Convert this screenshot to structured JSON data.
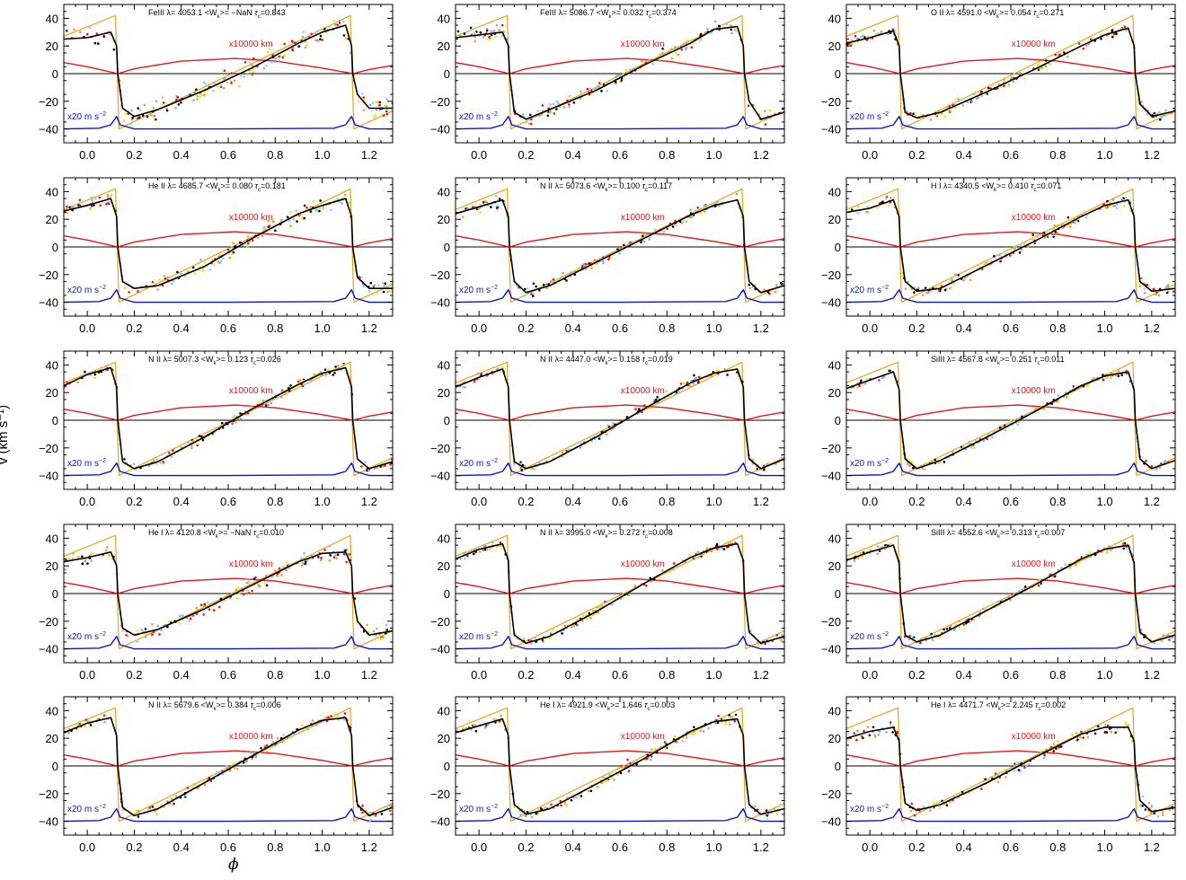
{
  "figure": {
    "ylabel": "v (km s⁻¹)",
    "xlabel": "ϕ"
  },
  "chart_data": {
    "type": "line",
    "grid": false,
    "xlim": [
      -0.1,
      1.3
    ],
    "ylim": [
      -50,
      50
    ],
    "xticks": [
      0.0,
      0.2,
      0.4,
      0.6,
      0.8,
      1.0,
      1.2
    ],
    "xtick_labels": [
      "0.0",
      "0.2",
      "0.4",
      "0.6",
      "0.8",
      "1.0",
      "1.2"
    ],
    "yticks": [
      -40,
      -20,
      0,
      20,
      40
    ],
    "ytick_labels": [
      "−40",
      "−20",
      "0",
      "20",
      "40"
    ],
    "colors": {
      "model_velocity": "#e8a317",
      "radius_curve": "#e8141b",
      "acceleration_curve": "#0a14c8",
      "zero_line": "#000000",
      "smoothed_fit": "#000000",
      "points": [
        "#000000",
        "#e8a317",
        "#f2e20c",
        "#7fd3f0",
        "#9aa6d8",
        "#e8141b"
      ]
    },
    "radius_label": "x10000 km",
    "accel_label": "x20 m s",
    "accel_label_sup": "−2",
    "model_velocity": {
      "x": [
        -0.1,
        0.12,
        0.135,
        1.12,
        1.135,
        1.3
      ],
      "y": [
        27,
        42,
        -40,
        42,
        -40,
        -27
      ]
    },
    "radius_curve": {
      "x": [
        -0.1,
        0.0,
        0.13,
        0.2,
        0.4,
        0.63,
        0.8,
        1.0,
        1.13,
        1.2,
        1.3
      ],
      "y": [
        8,
        5,
        0,
        3.5,
        9,
        11,
        9,
        4,
        0,
        3,
        6
      ]
    },
    "acceleration_curve": {
      "x": [
        -0.1,
        0.05,
        0.1,
        0.125,
        0.14,
        0.2,
        0.6,
        1.05,
        1.1,
        1.125,
        1.14,
        1.2,
        1.3
      ],
      "y": [
        -40,
        -39.5,
        -37,
        -31,
        -37,
        -40,
        -40,
        -39.5,
        -37,
        -31,
        -37,
        -40,
        -40
      ]
    },
    "panels": [
      {
        "ion": "FeIII",
        "wavelength": "4053.1",
        "wk": " −NaN",
        "tau": "0.843",
        "scatter": 3.5,
        "fit": {
          "x": [
            -0.1,
            0.0,
            0.1,
            0.125,
            0.13,
            0.15,
            0.2,
            0.3,
            0.5,
            0.7,
            0.9,
            1.0,
            1.1,
            1.125,
            1.13,
            1.15,
            1.2,
            1.3
          ],
          "y": [
            25,
            26,
            30,
            20,
            0,
            -25,
            -31,
            -26,
            -12,
            4,
            22,
            30,
            35,
            20,
            0,
            -15,
            -25,
            -25
          ]
        }
      },
      {
        "ion": "FeIII",
        "wavelength": "5086.7",
        "wk": " 0.032",
        "tau": "0.374",
        "scatter": 2.5,
        "fit": {
          "x": [
            -0.1,
            0.0,
            0.1,
            0.125,
            0.13,
            0.15,
            0.2,
            0.3,
            0.5,
            0.7,
            0.9,
            1.0,
            1.1,
            1.125,
            1.13,
            1.15,
            1.2,
            1.3
          ],
          "y": [
            26,
            28,
            30,
            20,
            0,
            -28,
            -33,
            -26,
            -12,
            6,
            22,
            32,
            34,
            20,
            0,
            -20,
            -33,
            -28
          ]
        }
      },
      {
        "ion": "O  II",
        "wavelength": "4591.0",
        "wk": " 0.054",
        "tau": "0.271",
        "scatter": 1.8,
        "fit": {
          "x": [
            -0.1,
            0.0,
            0.1,
            0.125,
            0.13,
            0.15,
            0.2,
            0.3,
            0.5,
            0.7,
            0.9,
            1.0,
            1.1,
            1.125,
            1.13,
            1.15,
            1.2,
            1.3
          ],
          "y": [
            22,
            26,
            31,
            20,
            0,
            -28,
            -32,
            -28,
            -13,
            3,
            20,
            28,
            33,
            20,
            0,
            -22,
            -31,
            -27
          ]
        }
      },
      {
        "ion": "He II",
        "wavelength": "4685.7",
        "wk": " 0.080",
        "tau": "0.181",
        "scatter": 2.5,
        "fit": {
          "x": [
            -0.1,
            0.0,
            0.1,
            0.125,
            0.13,
            0.15,
            0.2,
            0.3,
            0.5,
            0.7,
            0.9,
            1.0,
            1.1,
            1.125,
            1.13,
            1.15,
            1.2,
            1.3
          ],
          "y": [
            26,
            30,
            35,
            22,
            0,
            -25,
            -30,
            -28,
            -14,
            6,
            24,
            30,
            35,
            22,
            0,
            -22,
            -30,
            -30
          ]
        }
      },
      {
        "ion": "N  II",
        "wavelength": "5073.6",
        "wk": " 0.100",
        "tau": "0.117",
        "scatter": 1.8,
        "fit": {
          "x": [
            -0.1,
            0.0,
            0.1,
            0.125,
            0.13,
            0.15,
            0.2,
            0.3,
            0.5,
            0.7,
            0.9,
            1.0,
            1.1,
            1.125,
            1.13,
            1.15,
            1.2,
            1.3
          ],
          "y": [
            24,
            29,
            34,
            22,
            0,
            -25,
            -33,
            -28,
            -11,
            6,
            23,
            30,
            34,
            22,
            0,
            -25,
            -33,
            -28
          ]
        }
      },
      {
        "ion": "H  I",
        "wavelength": "4340.5",
        "wk": " 0.410",
        "tau": "0.071",
        "scatter": 2.0,
        "fit": {
          "x": [
            -0.1,
            0.0,
            0.1,
            0.125,
            0.13,
            0.15,
            0.2,
            0.3,
            0.5,
            0.7,
            0.9,
            1.0,
            1.1,
            1.125,
            1.13,
            1.15,
            1.2,
            1.3
          ],
          "y": [
            25,
            28,
            34,
            22,
            0,
            -25,
            -32,
            -30,
            -13,
            4,
            22,
            30,
            34,
            22,
            0,
            -25,
            -32,
            -30
          ]
        }
      },
      {
        "ion": "N  II",
        "wavelength": "5007.3",
        "wk": " 0.123",
        "tau": "0.026",
        "scatter": 1.5,
        "fit": {
          "x": [
            -0.1,
            0.0,
            0.1,
            0.125,
            0.13,
            0.15,
            0.2,
            0.3,
            0.5,
            0.7,
            0.9,
            1.0,
            1.1,
            1.125,
            1.13,
            1.15,
            1.2,
            1.3
          ],
          "y": [
            25,
            33,
            38,
            24,
            0,
            -30,
            -35,
            -30,
            -12,
            8,
            26,
            34,
            38,
            24,
            0,
            -28,
            -35,
            -30
          ]
        }
      },
      {
        "ion": "N  II",
        "wavelength": "4447.0",
        "wk": " 0.158",
        "tau": "0.019",
        "scatter": 1.5,
        "fit": {
          "x": [
            -0.1,
            0.0,
            0.1,
            0.125,
            0.13,
            0.15,
            0.2,
            0.3,
            0.5,
            0.7,
            0.9,
            1.0,
            1.1,
            1.125,
            1.13,
            1.15,
            1.2,
            1.3
          ],
          "y": [
            24,
            31,
            37,
            24,
            0,
            -30,
            -35,
            -30,
            -12,
            8,
            27,
            34,
            37,
            24,
            0,
            -28,
            -35,
            -28
          ]
        }
      },
      {
        "ion": "SiIII",
        "wavelength": "4567.8",
        "wk": " 0.251",
        "tau": "0.011",
        "scatter": 1.3,
        "fit": {
          "x": [
            -0.1,
            0.0,
            0.1,
            0.125,
            0.13,
            0.15,
            0.2,
            0.3,
            0.5,
            0.7,
            0.9,
            1.0,
            1.1,
            1.125,
            1.13,
            1.15,
            1.2,
            1.3
          ],
          "y": [
            23,
            29,
            35,
            22,
            0,
            -28,
            -35,
            -29,
            -12,
            6,
            25,
            32,
            35,
            22,
            0,
            -28,
            -35,
            -29
          ]
        }
      },
      {
        "ion": "He  I",
        "wavelength": "4120.8",
        "wk": " −NaN",
        "tau": "0.010",
        "scatter": 2.5,
        "fit": {
          "x": [
            -0.1,
            0.0,
            0.1,
            0.125,
            0.13,
            0.15,
            0.2,
            0.3,
            0.5,
            0.7,
            0.9,
            1.0,
            1.1,
            1.125,
            1.13,
            1.15,
            1.2,
            1.3
          ],
          "y": [
            23,
            26,
            30,
            20,
            0,
            -25,
            -30,
            -26,
            -11,
            6,
            23,
            29,
            30,
            20,
            0,
            -20,
            -30,
            -27
          ]
        }
      },
      {
        "ion": "N  II",
        "wavelength": "3995.0",
        "wk": " 0.272",
        "tau": "0.008",
        "scatter": 1.3,
        "fit": {
          "x": [
            -0.1,
            0.0,
            0.1,
            0.125,
            0.13,
            0.15,
            0.2,
            0.3,
            0.5,
            0.7,
            0.9,
            1.0,
            1.1,
            1.125,
            1.13,
            1.15,
            1.2,
            1.3
          ],
          "y": [
            25,
            32,
            36,
            24,
            0,
            -30,
            -36,
            -31,
            -13,
            7,
            26,
            33,
            36,
            24,
            0,
            -28,
            -36,
            -31
          ]
        }
      },
      {
        "ion": "SiIII",
        "wavelength": "4552.6",
        "wk": " 0.313",
        "tau": "0.007",
        "scatter": 1.3,
        "fit": {
          "x": [
            -0.1,
            0.0,
            0.1,
            0.125,
            0.13,
            0.15,
            0.2,
            0.3,
            0.5,
            0.7,
            0.9,
            1.0,
            1.1,
            1.125,
            1.13,
            1.15,
            1.2,
            1.3
          ],
          "y": [
            24,
            30,
            35,
            22,
            0,
            -30,
            -35,
            -30,
            -12,
            6,
            25,
            32,
            35,
            22,
            0,
            -28,
            -35,
            -30
          ]
        }
      },
      {
        "ion": "N  II",
        "wavelength": "5679.6",
        "wk": " 0.384",
        "tau": "0.006",
        "scatter": 1.5,
        "fit": {
          "x": [
            -0.1,
            0.0,
            0.1,
            0.125,
            0.13,
            0.15,
            0.2,
            0.3,
            0.5,
            0.7,
            0.9,
            1.0,
            1.1,
            1.125,
            1.13,
            1.15,
            1.2,
            1.3
          ],
          "y": [
            24,
            31,
            35,
            22,
            0,
            -30,
            -36,
            -31,
            -12,
            7,
            26,
            33,
            35,
            22,
            0,
            -28,
            -36,
            -30
          ]
        }
      },
      {
        "ion": "He  I",
        "wavelength": "4921.9",
        "wk": " 1.646",
        "tau": "0.003",
        "scatter": 2.0,
        "fit": {
          "x": [
            -0.1,
            0.0,
            0.1,
            0.125,
            0.13,
            0.15,
            0.2,
            0.3,
            0.5,
            0.7,
            0.9,
            1.0,
            1.1,
            1.125,
            1.13,
            1.15,
            1.2,
            1.3
          ],
          "y": [
            24,
            29,
            34,
            22,
            0,
            -28,
            -35,
            -31,
            -13,
            5,
            25,
            32,
            34,
            22,
            0,
            -28,
            -35,
            -31
          ]
        }
      },
      {
        "ion": "He  I",
        "wavelength": "4471.7",
        "wk": " 2.245",
        "tau": "0.002",
        "scatter": 2.2,
        "fit": {
          "x": [
            -0.1,
            0.0,
            0.1,
            0.125,
            0.13,
            0.15,
            0.2,
            0.3,
            0.5,
            0.7,
            0.9,
            1.0,
            1.1,
            1.125,
            1.13,
            1.15,
            1.2,
            1.3
          ],
          "y": [
            20,
            25,
            28,
            18,
            0,
            -27,
            -32,
            -28,
            -12,
            6,
            23,
            28,
            28,
            18,
            0,
            -25,
            -33,
            -30
          ]
        }
      }
    ]
  }
}
